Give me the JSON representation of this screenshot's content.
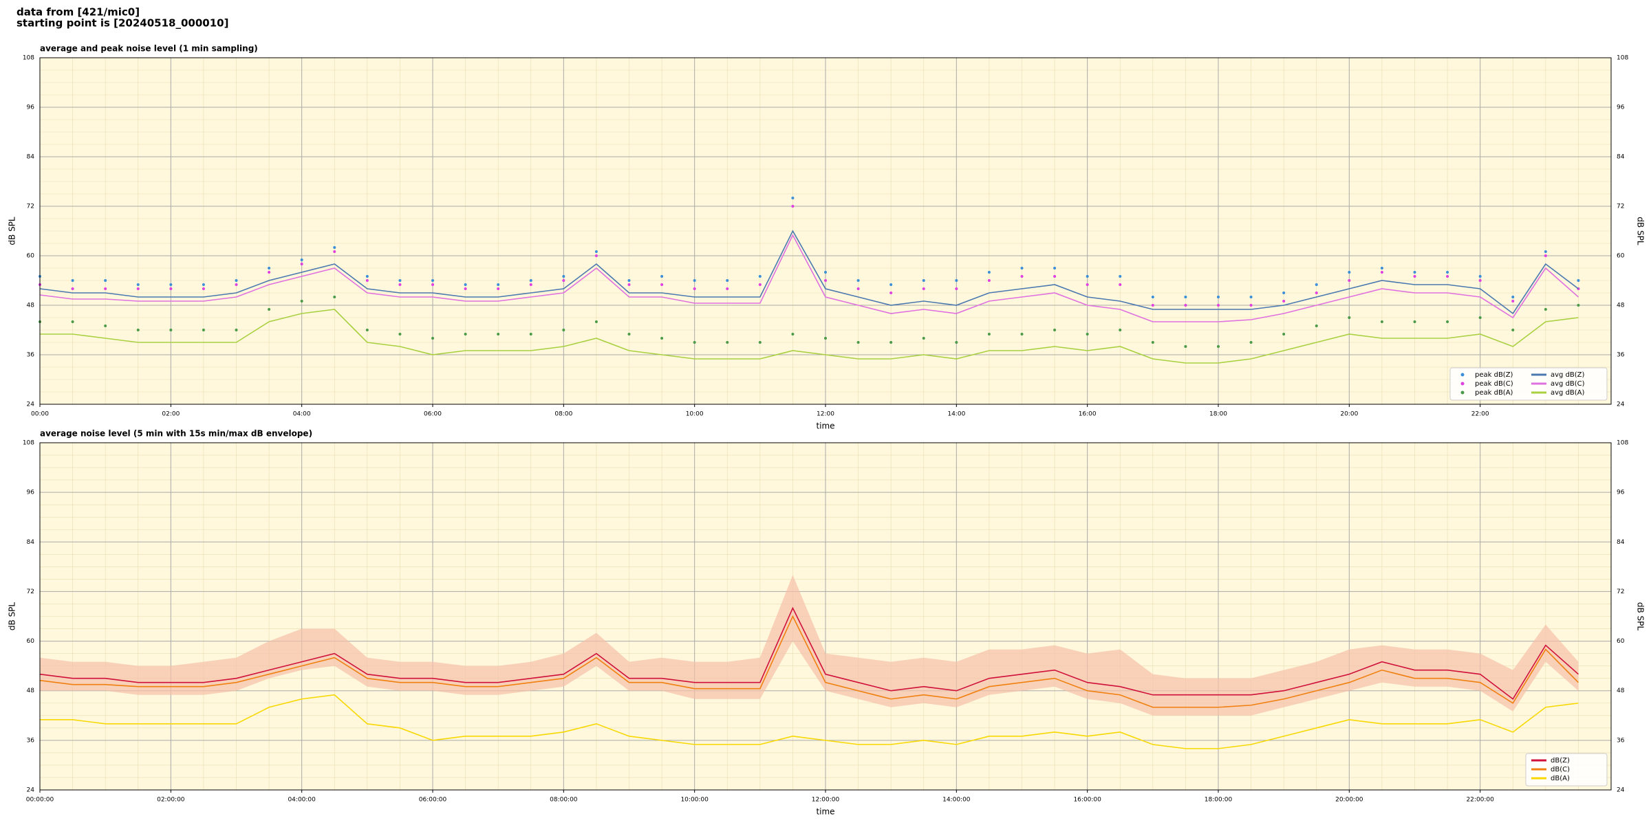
{
  "header": [
    "data from [421/mic0]",
    "starting point is [20240518_000010]"
  ],
  "chart_data": [
    {
      "type": "line",
      "title": "average and peak noise level (1 min sampling)",
      "xlabel": "time",
      "ylabel": "dB SPL",
      "background": "#fff8dc",
      "grid": true,
      "legend_loc": "lower right",
      "legend_ncol": 2,
      "x": [
        0,
        0.5,
        1,
        1.5,
        2,
        2.5,
        3,
        3.5,
        4,
        4.5,
        5,
        5.5,
        6,
        6.5,
        7,
        7.5,
        8,
        8.5,
        9,
        9.5,
        10,
        10.5,
        11,
        11.5,
        12,
        12.5,
        13,
        13.5,
        14,
        14.5,
        15,
        15.5,
        16,
        16.5,
        17,
        17.5,
        18,
        18.5,
        19,
        19.5,
        20,
        20.5,
        21,
        21.5,
        22,
        22.5,
        23,
        23.5
      ],
      "xlim": [
        0,
        24
      ],
      "xticks": [
        {
          "value": 0,
          "label": "00:00"
        },
        {
          "value": 2,
          "label": "02:00"
        },
        {
          "value": 4,
          "label": "04:00"
        },
        {
          "value": 6,
          "label": "06:00"
        },
        {
          "value": 8,
          "label": "08:00"
        },
        {
          "value": 10,
          "label": "10:00"
        },
        {
          "value": 12,
          "label": "12:00"
        },
        {
          "value": 14,
          "label": "14:00"
        },
        {
          "value": 16,
          "label": "16:00"
        },
        {
          "value": 18,
          "label": "18:00"
        },
        {
          "value": 20,
          "label": "20:00"
        },
        {
          "value": 22,
          "label": "22:00"
        }
      ],
      "ylim": [
        24,
        108
      ],
      "yticks": [
        24,
        36,
        48,
        60,
        72,
        84,
        96,
        108
      ],
      "series": [
        {
          "name": "peak dB(Z)",
          "kind": "scatter",
          "color": "#3a8fd8",
          "values": [
            55,
            54,
            54,
            53,
            53,
            53,
            54,
            57,
            59,
            62,
            55,
            54,
            54,
            53,
            53,
            54,
            55,
            61,
            54,
            55,
            54,
            54,
            55,
            74,
            56,
            54,
            53,
            54,
            54,
            56,
            57,
            57,
            55,
            55,
            50,
            50,
            50,
            50,
            51,
            53,
            56,
            57,
            56,
            56,
            55,
            50,
            61,
            54
          ]
        },
        {
          "name": "peak dB(C)",
          "kind": "scatter",
          "color": "#e040e0",
          "values": [
            53,
            52,
            52,
            52,
            52,
            52,
            53,
            56,
            58,
            61,
            54,
            53,
            53,
            52,
            52,
            53,
            54,
            60,
            53,
            53,
            52,
            52,
            53,
            72,
            54,
            52,
            51,
            52,
            52,
            54,
            55,
            55,
            53,
            53,
            48,
            48,
            48,
            48,
            49,
            51,
            54,
            56,
            55,
            55,
            54,
            49,
            60,
            52
          ]
        },
        {
          "name": "peak dB(A)",
          "kind": "scatter",
          "color": "#4a9a4a",
          "values": [
            44,
            44,
            43,
            42,
            42,
            42,
            42,
            47,
            49,
            50,
            42,
            41,
            40,
            41,
            41,
            41,
            42,
            44,
            41,
            40,
            39,
            39,
            39,
            41,
            40,
            39,
            39,
            40,
            39,
            41,
            41,
            42,
            41,
            42,
            39,
            38,
            38,
            39,
            41,
            43,
            45,
            44,
            44,
            44,
            45,
            42,
            47,
            48
          ]
        },
        {
          "name": "avg dB(Z)",
          "kind": "line",
          "color": "#4a78b0",
          "values": [
            52,
            51,
            51,
            50,
            50,
            50,
            51,
            54,
            56,
            58,
            52,
            51,
            51,
            50,
            50,
            51,
            52,
            58,
            51,
            51,
            50,
            50,
            50,
            66,
            52,
            50,
            48,
            49,
            48,
            51,
            52,
            53,
            50,
            49,
            47,
            47,
            47,
            47,
            48,
            50,
            52,
            54,
            53,
            53,
            52,
            46,
            58,
            52
          ]
        },
        {
          "name": "avg dB(C)",
          "kind": "line",
          "color": "#e070e0",
          "values": [
            50.5,
            49.5,
            49.5,
            49,
            49,
            49,
            50,
            53,
            55,
            57,
            51,
            50,
            50,
            49,
            49,
            50,
            51,
            57,
            50,
            50,
            48.5,
            48.5,
            48.5,
            65,
            50,
            48,
            46,
            47,
            46,
            49,
            50,
            51,
            48,
            47,
            44,
            44,
            44,
            44.5,
            46,
            48,
            50,
            52,
            51,
            51,
            50,
            45,
            57,
            50
          ]
        },
        {
          "name": "avg dB(A)",
          "kind": "line",
          "color": "#a8d040",
          "values": [
            41,
            41,
            40,
            39,
            39,
            39,
            39,
            44,
            46,
            47,
            39,
            38,
            36,
            37,
            37,
            37,
            38,
            40,
            37,
            36,
            35,
            35,
            35,
            37,
            36,
            35,
            35,
            36,
            35,
            37,
            37,
            38,
            37,
            38,
            35,
            34,
            34,
            35,
            37,
            39,
            41,
            40,
            40,
            40,
            41,
            38,
            44,
            45
          ]
        }
      ]
    },
    {
      "type": "line",
      "title": "average noise level (5 min with 15s min/max dB envelope)",
      "xlabel": "time",
      "ylabel": "dB SPL",
      "background": "#fff8dc",
      "grid": true,
      "legend_loc": "lower right",
      "legend_ncol": 1,
      "x": [
        0,
        0.5,
        1,
        1.5,
        2,
        2.5,
        3,
        3.5,
        4,
        4.5,
        5,
        5.5,
        6,
        6.5,
        7,
        7.5,
        8,
        8.5,
        9,
        9.5,
        10,
        10.5,
        11,
        11.5,
        12,
        12.5,
        13,
        13.5,
        14,
        14.5,
        15,
        15.5,
        16,
        16.5,
        17,
        17.5,
        18,
        18.5,
        19,
        19.5,
        20,
        20.5,
        21,
        21.5,
        22,
        22.5,
        23,
        23.5
      ],
      "xlim": [
        0,
        24
      ],
      "xticks": [
        {
          "value": 0,
          "label": "00:00:00"
        },
        {
          "value": 2,
          "label": "02:00:00"
        },
        {
          "value": 4,
          "label": "04:00:00"
        },
        {
          "value": 6,
          "label": "06:00:00"
        },
        {
          "value": 8,
          "label": "08:00:00"
        },
        {
          "value": 10,
          "label": "10:00:00"
        },
        {
          "value": 12,
          "label": "12:00:00"
        },
        {
          "value": 14,
          "label": "14:00:00"
        },
        {
          "value": 16,
          "label": "16:00:00"
        },
        {
          "value": 18,
          "label": "18:00:00"
        },
        {
          "value": 20,
          "label": "20:00:00"
        },
        {
          "value": 22,
          "label": "22:00:00"
        }
      ],
      "ylim": [
        24,
        108
      ],
      "yticks": [
        24,
        36,
        48,
        60,
        72,
        84,
        96,
        108
      ],
      "envelope": {
        "color": "#f5c0a8",
        "upper": [
          56,
          55,
          55,
          54,
          54,
          55,
          56,
          60,
          63,
          63,
          56,
          55,
          55,
          54,
          54,
          55,
          57,
          62,
          55,
          56,
          55,
          55,
          56,
          76,
          57,
          56,
          55,
          56,
          55,
          58,
          58,
          59,
          57,
          58,
          52,
          51,
          51,
          51,
          53,
          55,
          58,
          59,
          58,
          58,
          57,
          53,
          64,
          55
        ],
        "lower": [
          48,
          48,
          48,
          47,
          47,
          47,
          48,
          51,
          53,
          54,
          49,
          48,
          48,
          47,
          47,
          48,
          49,
          54,
          48,
          48,
          46,
          46,
          46,
          60,
          48,
          46,
          44,
          45,
          44,
          47,
          48,
          49,
          46,
          45,
          42,
          42,
          42,
          42,
          44,
          46,
          48,
          50,
          49,
          49,
          48,
          43,
          55,
          48
        ]
      },
      "series": [
        {
          "name": "dB(Z)",
          "kind": "line",
          "color": "#d0103a",
          "values": [
            52,
            51,
            51,
            50,
            50,
            50,
            51,
            53,
            55,
            57,
            52,
            51,
            51,
            50,
            50,
            51,
            52,
            57,
            51,
            51,
            50,
            50,
            50,
            68,
            52,
            50,
            48,
            49,
            48,
            51,
            52,
            53,
            50,
            49,
            47,
            47,
            47,
            47,
            48,
            50,
            52,
            55,
            53,
            53,
            52,
            46,
            59,
            52
          ]
        },
        {
          "name": "dB(C)",
          "kind": "line",
          "color": "#f08010",
          "values": [
            50.5,
            49.5,
            49.5,
            49,
            49,
            49,
            50,
            52,
            54,
            56,
            51,
            50,
            50,
            49,
            49,
            50,
            51,
            56,
            50,
            50,
            48.5,
            48.5,
            48.5,
            66,
            50,
            48,
            46,
            47,
            46,
            49,
            50,
            51,
            48,
            47,
            44,
            44,
            44,
            44.5,
            46,
            48,
            50,
            53,
            51,
            51,
            50,
            45,
            58,
            50
          ]
        },
        {
          "name": "dB(A)",
          "kind": "line",
          "color": "#f8d800",
          "values": [
            41,
            41,
            40,
            40,
            40,
            40,
            40,
            44,
            46,
            47,
            40,
            39,
            36,
            37,
            37,
            37,
            38,
            40,
            37,
            36,
            35,
            35,
            35,
            37,
            36,
            35,
            35,
            36,
            35,
            37,
            37,
            38,
            37,
            38,
            35,
            34,
            34,
            35,
            37,
            39,
            41,
            40,
            40,
            40,
            41,
            38,
            44,
            45
          ]
        }
      ]
    }
  ]
}
